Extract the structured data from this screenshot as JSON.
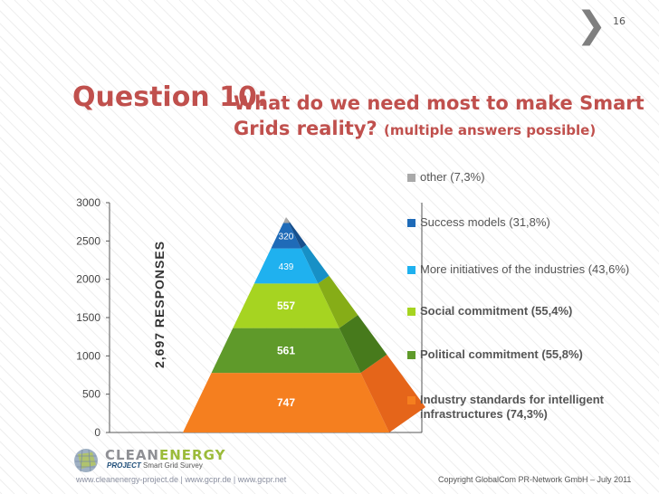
{
  "page": {
    "number": "16"
  },
  "title": {
    "question": "Question 10:",
    "main": "What do we need most to make Smart Grids reality?",
    "sub": "(multiple answers possible)"
  },
  "chart_data": {
    "type": "pyramid",
    "total_label": "2,697 RESPONSES",
    "ylim": [
      0,
      3000
    ],
    "yticks": [
      "0",
      "500",
      "1000",
      "1500",
      "2000",
      "2500",
      "3000"
    ],
    "layers": [
      {
        "value": 747,
        "label": "747",
        "color": "#f57f1f",
        "side": "#e5651a"
      },
      {
        "value": 561,
        "label": "561",
        "color": "#5f9a2a",
        "side": "#477a1c"
      },
      {
        "value": 557,
        "label": "557",
        "color": "#a6d421",
        "side": "#86ad17"
      },
      {
        "value": 439,
        "label": "439",
        "color": "#1fb1ef",
        "side": "#1790c6"
      },
      {
        "value": 320,
        "label": "320",
        "color": "#1f6bb8",
        "side": "#164f8c"
      },
      {
        "value": 73,
        "label": "",
        "color": "#a9a9a9",
        "side": "#888888"
      }
    ],
    "legend": [
      {
        "text": "other (7,3%)",
        "color": "#a9a9a9",
        "bold": false
      },
      {
        "text": "Success models (31,8%)",
        "color": "#1f6bb8",
        "bold": false
      },
      {
        "text": "More initiatives of the industries (43,6%)",
        "color": "#1fb1ef",
        "bold": false
      },
      {
        "text": "Social commitment (55,4%)",
        "color": "#a6d421",
        "bold": true
      },
      {
        "text": "Political commitment (55,8%)",
        "color": "#5f9a2a",
        "bold": true
      },
      {
        "text": "Industry standards for intelligent infrastructures (74,3%)",
        "color": "#f57f1f",
        "bold": true
      }
    ]
  },
  "logo": {
    "word1": "CLEAN",
    "word2": "ENERGY",
    "project": "PROJECT",
    "tagline": "Smart Grid Survey"
  },
  "footer": {
    "left": "www.cleanenergy-project.de | www.gcpr.de | www.gcpr.net",
    "right": "Copyright GlobalCom PR-Network GmbH – July 2011"
  }
}
